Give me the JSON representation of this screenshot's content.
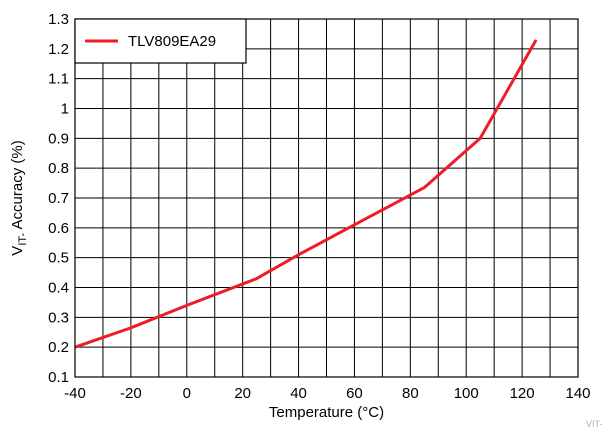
{
  "chart_data": {
    "type": "line",
    "title": "",
    "xlabel": "Temperature (°C)",
    "ylabel": {
      "prefix": "V",
      "subscript": "IT-",
      "suffix": " Accuracy (%)"
    },
    "xlim": [
      -40,
      140
    ],
    "ylim": [
      0.1,
      1.3
    ],
    "xticks": [
      -40,
      -20,
      0,
      20,
      40,
      60,
      80,
      100,
      120,
      140
    ],
    "yticks": [
      0.1,
      0.2,
      0.3,
      0.4,
      0.5,
      0.6,
      0.7,
      0.8,
      0.9,
      1.0,
      1.1,
      1.2,
      1.3
    ],
    "xtick_labels": [
      "-40",
      "-20",
      "0",
      "20",
      "40",
      "60",
      "80",
      "100",
      "120",
      "140"
    ],
    "ytick_labels": [
      "0.1",
      "0.2",
      "0.3",
      "0.4",
      "0.5",
      "0.6",
      "0.7",
      "0.8",
      "0.9",
      "1",
      "1.1",
      "1.2",
      "1.3"
    ],
    "x_minor_step": 10,
    "grid": true,
    "legend_position": "top-left",
    "series": [
      {
        "name": "TLV809EA29",
        "color": "#ee1c25",
        "x": [
          -40,
          -20,
          0,
          25,
          40,
          60,
          85,
          105,
          125
        ],
        "y": [
          0.2,
          0.265,
          0.34,
          0.43,
          0.51,
          0.61,
          0.735,
          0.9,
          1.23
        ]
      }
    ]
  },
  "watermark": "VIT-"
}
